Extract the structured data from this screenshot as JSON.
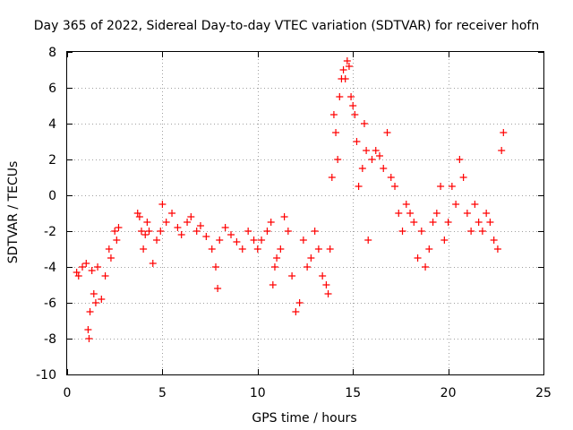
{
  "chart_data": {
    "type": "scatter",
    "title": "Day 365 of 2022, Sidereal Day-to-day VTEC variation (SDTVAR) for receiver hofn",
    "xlabel": "GPS time / hours",
    "ylabel": "SDTVAR / TECUs",
    "xlim": [
      0,
      25
    ],
    "ylim": [
      -10,
      8
    ],
    "xticks": [
      0,
      5,
      10,
      15,
      20,
      25
    ],
    "xtick_labels": [
      "0",
      "5",
      "10",
      "15",
      "20",
      "25"
    ],
    "yticks": [
      -10,
      -8,
      -6,
      -4,
      -2,
      0,
      2,
      4,
      6,
      8
    ],
    "ytick_labels": [
      "-10",
      "-8",
      "-6",
      "-4",
      "-2",
      "0",
      "2",
      "4",
      "6",
      "8"
    ],
    "grid": true,
    "marker": "+",
    "color": "#ff0000",
    "series": [
      {
        "name": "SDTVAR hofn",
        "x": [
          0.5,
          0.6,
          0.8,
          1.0,
          1.1,
          1.15,
          1.2,
          1.3,
          1.4,
          1.5,
          1.6,
          1.8,
          2.0,
          2.2,
          2.3,
          2.5,
          2.6,
          2.7,
          3.7,
          3.8,
          3.9,
          4.0,
          4.1,
          4.2,
          4.3,
          4.5,
          4.7,
          4.9,
          5.0,
          5.2,
          5.5,
          5.8,
          6.0,
          6.3,
          6.5,
          6.8,
          7.0,
          7.3,
          7.6,
          7.8,
          7.9,
          8.0,
          8.3,
          8.6,
          8.9,
          9.2,
          9.5,
          9.8,
          10.0,
          10.2,
          10.5,
          10.7,
          10.8,
          10.9,
          11.0,
          11.2,
          11.4,
          11.6,
          11.8,
          12.0,
          12.2,
          12.4,
          12.6,
          12.8,
          13.0,
          13.2,
          13.4,
          13.6,
          13.7,
          13.8,
          13.9,
          14.0,
          14.1,
          14.2,
          14.3,
          14.4,
          14.5,
          14.6,
          14.7,
          14.8,
          14.9,
          15.0,
          15.1,
          15.2,
          15.3,
          15.5,
          15.6,
          15.7,
          15.8,
          16.0,
          16.2,
          16.4,
          16.6,
          16.8,
          17.0,
          17.2,
          17.4,
          17.6,
          17.8,
          18.0,
          18.2,
          18.4,
          18.6,
          18.8,
          19.0,
          19.2,
          19.4,
          19.6,
          19.8,
          20.0,
          20.2,
          20.4,
          20.6,
          20.8,
          21.0,
          21.2,
          21.4,
          21.6,
          21.8,
          22.0,
          22.2,
          22.4,
          22.6,
          22.8,
          22.9
        ],
        "y": [
          -4.3,
          -4.5,
          -4.0,
          -3.8,
          -7.5,
          -8.0,
          -6.5,
          -4.2,
          -5.5,
          -6.0,
          -4.0,
          -5.8,
          -4.5,
          -3.0,
          -3.5,
          -2.0,
          -2.5,
          -1.8,
          -1.0,
          -1.2,
          -2.0,
          -3.0,
          -2.2,
          -1.5,
          -2.0,
          -3.8,
          -2.5,
          -2.0,
          -0.5,
          -1.5,
          -1.0,
          -1.8,
          -2.2,
          -1.5,
          -1.2,
          -2.0,
          -1.7,
          -2.3,
          -3.0,
          -4.0,
          -5.2,
          -2.5,
          -1.8,
          -2.2,
          -2.6,
          -3.0,
          -2.0,
          -2.5,
          -3.0,
          -2.5,
          -2.0,
          -1.5,
          -5.0,
          -4.0,
          -3.5,
          -3.0,
          -1.2,
          -2.0,
          -4.5,
          -6.5,
          -6.0,
          -2.5,
          -4.0,
          -3.5,
          -2.0,
          -3.0,
          -4.5,
          -5.0,
          -5.5,
          -3.0,
          1.0,
          4.5,
          3.5,
          2.0,
          5.5,
          6.5,
          7.0,
          6.5,
          7.5,
          7.2,
          5.5,
          5.0,
          4.5,
          3.0,
          0.5,
          1.5,
          4.0,
          2.5,
          -2.5,
          2.0,
          2.5,
          2.2,
          1.5,
          3.5,
          1.0,
          0.5,
          -1.0,
          -2.0,
          -0.5,
          -1.0,
          -1.5,
          -3.5,
          -2.0,
          -4.0,
          -3.0,
          -1.5,
          -1.0,
          0.5,
          -2.5,
          -1.5,
          0.5,
          -0.5,
          2.0,
          1.0,
          -1.0,
          -2.0,
          -0.5,
          -1.5,
          -2.0,
          -1.0,
          -1.5,
          -2.5,
          -3.0,
          2.5,
          3.5
        ]
      }
    ]
  }
}
